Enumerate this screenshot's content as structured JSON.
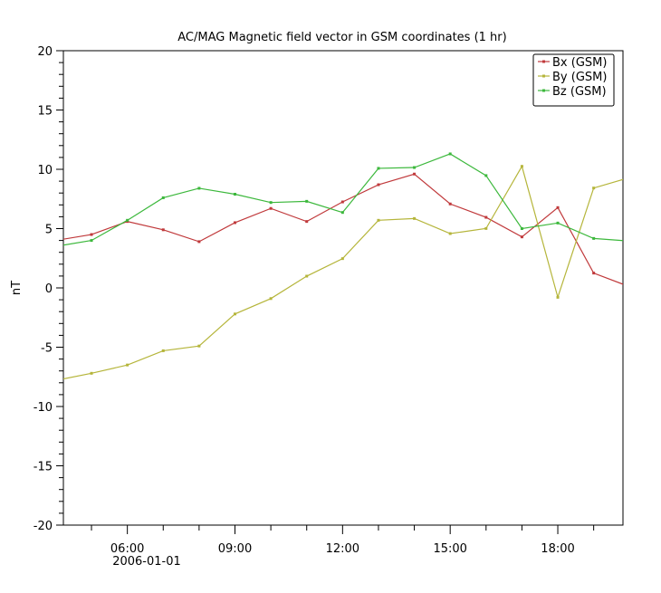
{
  "chart_data": {
    "type": "line",
    "title": "AC/MAG  Magnetic field vector in GSM coordinates (1 hr)",
    "xlabel": "",
    "ylabel": "nT",
    "date_label": "2006-01-01",
    "x": [
      "04:00",
      "05:00",
      "06:00",
      "07:00",
      "08:00",
      "09:00",
      "10:00",
      "11:00",
      "12:00",
      "13:00",
      "14:00",
      "15:00",
      "16:00",
      "17:00",
      "18:00",
      "19:00",
      "20:00"
    ],
    "xlim": [
      "2006-01-01 04:13",
      "2006-01-01 19:49"
    ],
    "x_ticks": [
      "06:00",
      "09:00",
      "12:00",
      "15:00",
      "18:00"
    ],
    "ylim": [
      -20,
      20
    ],
    "y_ticks": [
      "-20",
      "-15",
      "-10",
      "-5",
      "0",
      "5",
      "10",
      "15",
      "20"
    ],
    "grid": false,
    "legend_position": "top-right",
    "series": [
      {
        "name": "Bx (GSM)",
        "color": "#c0393b",
        "values": [
          4.0,
          4.5,
          5.6,
          4.9,
          3.9,
          5.5,
          6.7,
          5.6,
          7.25,
          8.7,
          9.6,
          7.08,
          5.95,
          4.3,
          6.77,
          1.25,
          0.1
        ]
      },
      {
        "name": "By (GSM)",
        "color": "#b5b53a",
        "values": [
          -7.8,
          -7.2,
          -6.5,
          -5.3,
          -4.9,
          -2.2,
          -0.9,
          0.99,
          2.47,
          5.7,
          5.85,
          4.58,
          5.01,
          10.25,
          -0.79,
          8.42,
          9.3
        ]
      },
      {
        "name": "Bz (GSM)",
        "color": "#3cb83c",
        "values": [
          3.5,
          4.0,
          5.7,
          7.6,
          8.4,
          7.9,
          7.2,
          7.3,
          6.36,
          10.08,
          10.15,
          11.3,
          9.47,
          5.0,
          5.47,
          4.17,
          3.95
        ]
      }
    ]
  }
}
